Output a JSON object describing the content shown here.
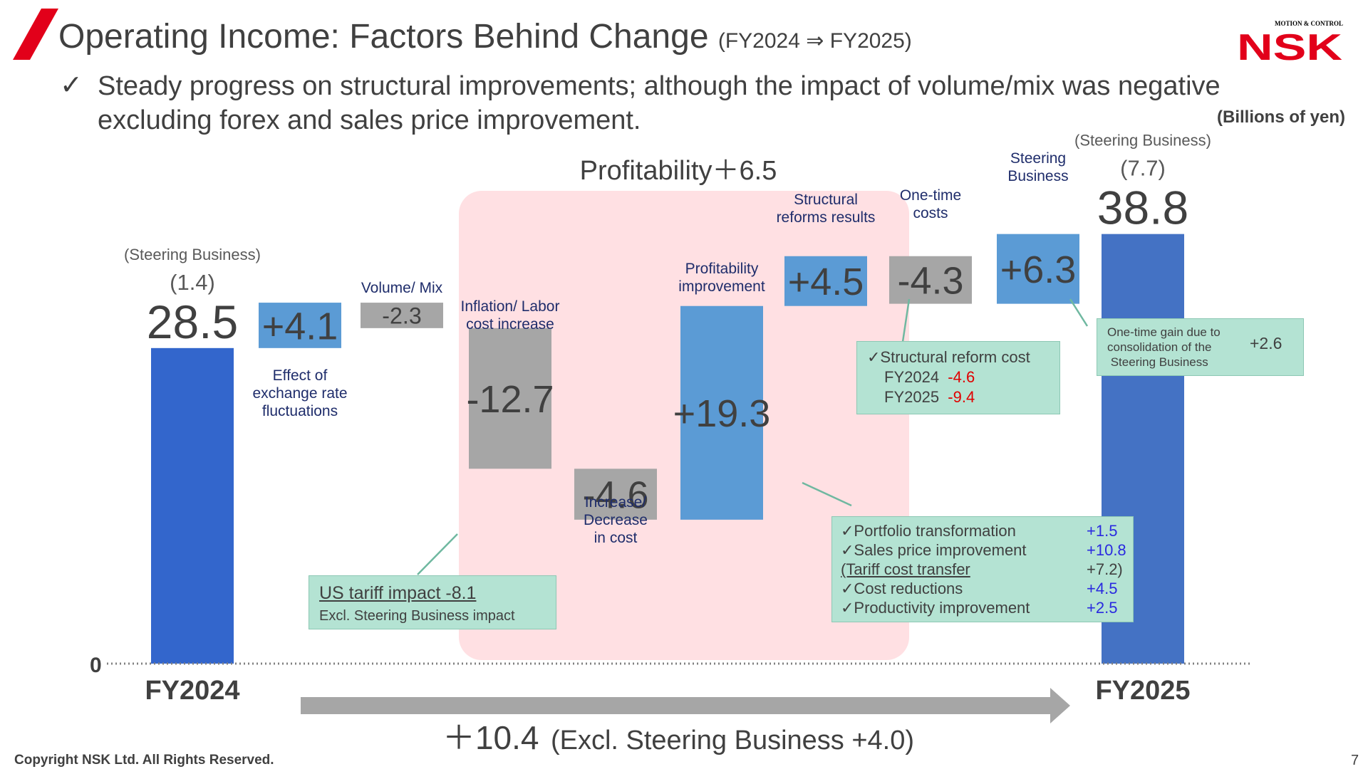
{
  "header": {
    "title": "Operating Income: Factors Behind Change",
    "title_sub": "(FY2024 ⇒ FY2025)",
    "logo_tagline": "MOTION & CONTROL",
    "logo_name": "NSK",
    "check_glyph": "✓",
    "bullet_text": "Steady progress on structural improvements; although the impact of volume/mix was negative excluding forex and sales price improvement.",
    "unit": "(Billions of yen)"
  },
  "colors": {
    "accent_red": "#e2001a",
    "total_bar": "#3366cc",
    "total_bar_end": "#4472c4",
    "positive_bar": "#5b9bd5",
    "negative_bar": "#a6a6a6",
    "profitability_panel": "#ffe0e3",
    "callout_fill": "#b4e3d3",
    "label_navy": "#1f2d6b"
  },
  "chart_data": {
    "type": "waterfall",
    "ylim": [
      0,
      40
    ],
    "zero_label": "0",
    "steps": [
      {
        "kind": "total",
        "category": "FY2024",
        "value": 28.5,
        "label": "28.5",
        "note_title": "(Steering Business)",
        "note_value": "(1.4)"
      },
      {
        "kind": "delta",
        "value": 4.1,
        "label": "+4.1",
        "caption": "Effect of\nexchange rate\nfluctuations"
      },
      {
        "kind": "delta",
        "value": -2.3,
        "label": "-2.3",
        "caption": "Volume/ Mix"
      },
      {
        "kind": "delta",
        "value": -12.7,
        "label": "-12.7",
        "caption": "Inflation/ Labor\ncost increase"
      },
      {
        "kind": "delta",
        "value": -4.6,
        "label": "-4.6",
        "caption": "Increase/\nDecrease\nin cost"
      },
      {
        "kind": "delta",
        "value": 19.3,
        "label": "+19.3",
        "caption": "Profitability\nimprovement"
      },
      {
        "kind": "delta",
        "value": 4.5,
        "label": "+4.5",
        "caption": "Structural\nreforms results"
      },
      {
        "kind": "delta",
        "value": -4.3,
        "label": "-4.3",
        "caption": "One-time\ncosts"
      },
      {
        "kind": "delta",
        "value": 6.3,
        "label": "+6.3",
        "caption": "Steering\nBusiness"
      },
      {
        "kind": "total",
        "category": "FY2025",
        "value": 38.8,
        "label": "38.8",
        "note_title": "(Steering Business)",
        "note_value": "(7.7)"
      }
    ],
    "profitability_group": {
      "label": "Profitability＋6.5"
    },
    "total_change": {
      "main": "＋10.4",
      "detail": "(Excl. Steering Business +4.0)"
    }
  },
  "callouts": {
    "tariff": {
      "title": "US tariff impact  -8.1",
      "sub": "Excl. Steering Business impact"
    },
    "structural": {
      "title": "✓Structural reform cost",
      "rows": [
        {
          "label": "FY2024",
          "value": "-4.6"
        },
        {
          "label": "FY2025",
          "value": "-9.4"
        }
      ]
    },
    "portfolio": [
      {
        "label": "✓Portfolio transformation",
        "value": "+1.5"
      },
      {
        "label": "✓Sales price improvement",
        "value": "+10.8"
      },
      {
        "label": "(Tariff cost transfer",
        "value": "+7.2)"
      },
      {
        "label": "✓Cost reductions",
        "value": "+4.5"
      },
      {
        "label": "✓Productivity improvement",
        "value": "+2.5"
      }
    ],
    "one_time_gain": {
      "text": "One-time gain due to\nconsolidation of the\n Steering Business",
      "value": "+2.6"
    }
  },
  "footer": {
    "copyright": "Copyright NSK Ltd. All Rights Reserved.",
    "page": "7"
  }
}
